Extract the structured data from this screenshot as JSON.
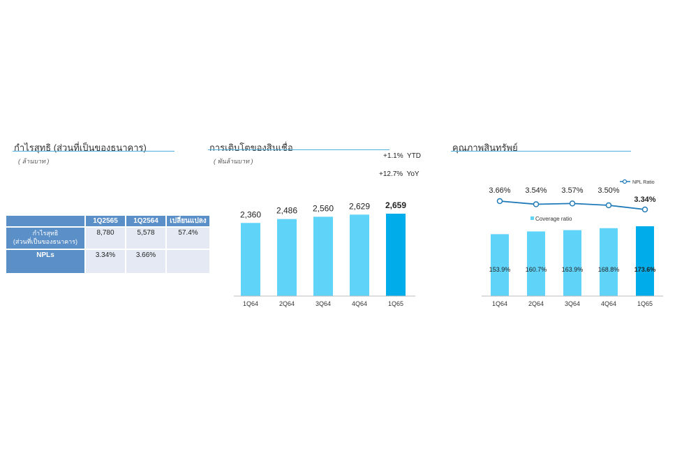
{
  "sections": {
    "profit": {
      "title": "กำไรสุทธิ (ส่วนที่เป็นของธนาคาร)",
      "unit": "( ล้านบาท )"
    },
    "loans": {
      "title": "การเติบโตของสินเชื่อ",
      "unit": "( พันล้านบาท )"
    },
    "quality": {
      "title": "คุณภาพสินทรัพย์"
    }
  },
  "kpi_table": {
    "headers": [
      "",
      "1Q2565",
      "1Q2564",
      "เปลี่ยนแปลง"
    ],
    "rows": [
      {
        "label_line1": "กำไรสุทธิ",
        "label_line2": "(ส่วนที่เป็นของธนาคาร)",
        "values": [
          "8,780",
          "5,578",
          "57.4%"
        ]
      },
      {
        "label_line1": "NPLs",
        "label_line2": "",
        "values": [
          "3.34%",
          "3.66%",
          ""
        ]
      }
    ]
  },
  "loan_growth": {
    "ytd": "+1.1%",
    "ytd_label": "YTD",
    "yoy": "+12.7%",
    "yoy_label": "YoY"
  },
  "colors": {
    "bar": "#5fd3f8",
    "bar_highlight": "#00adea",
    "line": "#1f7ab8",
    "table_header": "#5b8fc7",
    "table_cell": "#e4e9f4",
    "title_rule": "#4bb0e0"
  },
  "chart_data": [
    {
      "type": "bar",
      "categories": [
        "1Q64",
        "2Q64",
        "3Q64",
        "4Q64",
        "1Q65"
      ],
      "values": [
        2360,
        2486,
        2560,
        2629,
        2659
      ],
      "labels": [
        "2,360",
        "2,486",
        "2,560",
        "2,629",
        "2,659"
      ],
      "highlight_index": 4
    },
    {
      "type": "bar+line",
      "categories": [
        "1Q64",
        "2Q64",
        "3Q64",
        "4Q64",
        "1Q65"
      ],
      "series": [
        {
          "name": "Coverage ratio",
          "type": "bar",
          "values": [
            153.9,
            160.7,
            163.9,
            168.8,
            173.6
          ],
          "labels": [
            "153.9%",
            "160.7%",
            "163.9%",
            "168.8%",
            "173.6%"
          ]
        },
        {
          "name": "NPL Ratio",
          "type": "line",
          "values": [
            3.66,
            3.54,
            3.57,
            3.5,
            3.34
          ],
          "labels": [
            "3.66%",
            "3.54%",
            "3.57%",
            "3.50%",
            "3.34%"
          ]
        }
      ],
      "highlight_index": 4,
      "legend": [
        "NPL Ratio",
        "Coverage ratio"
      ]
    }
  ]
}
